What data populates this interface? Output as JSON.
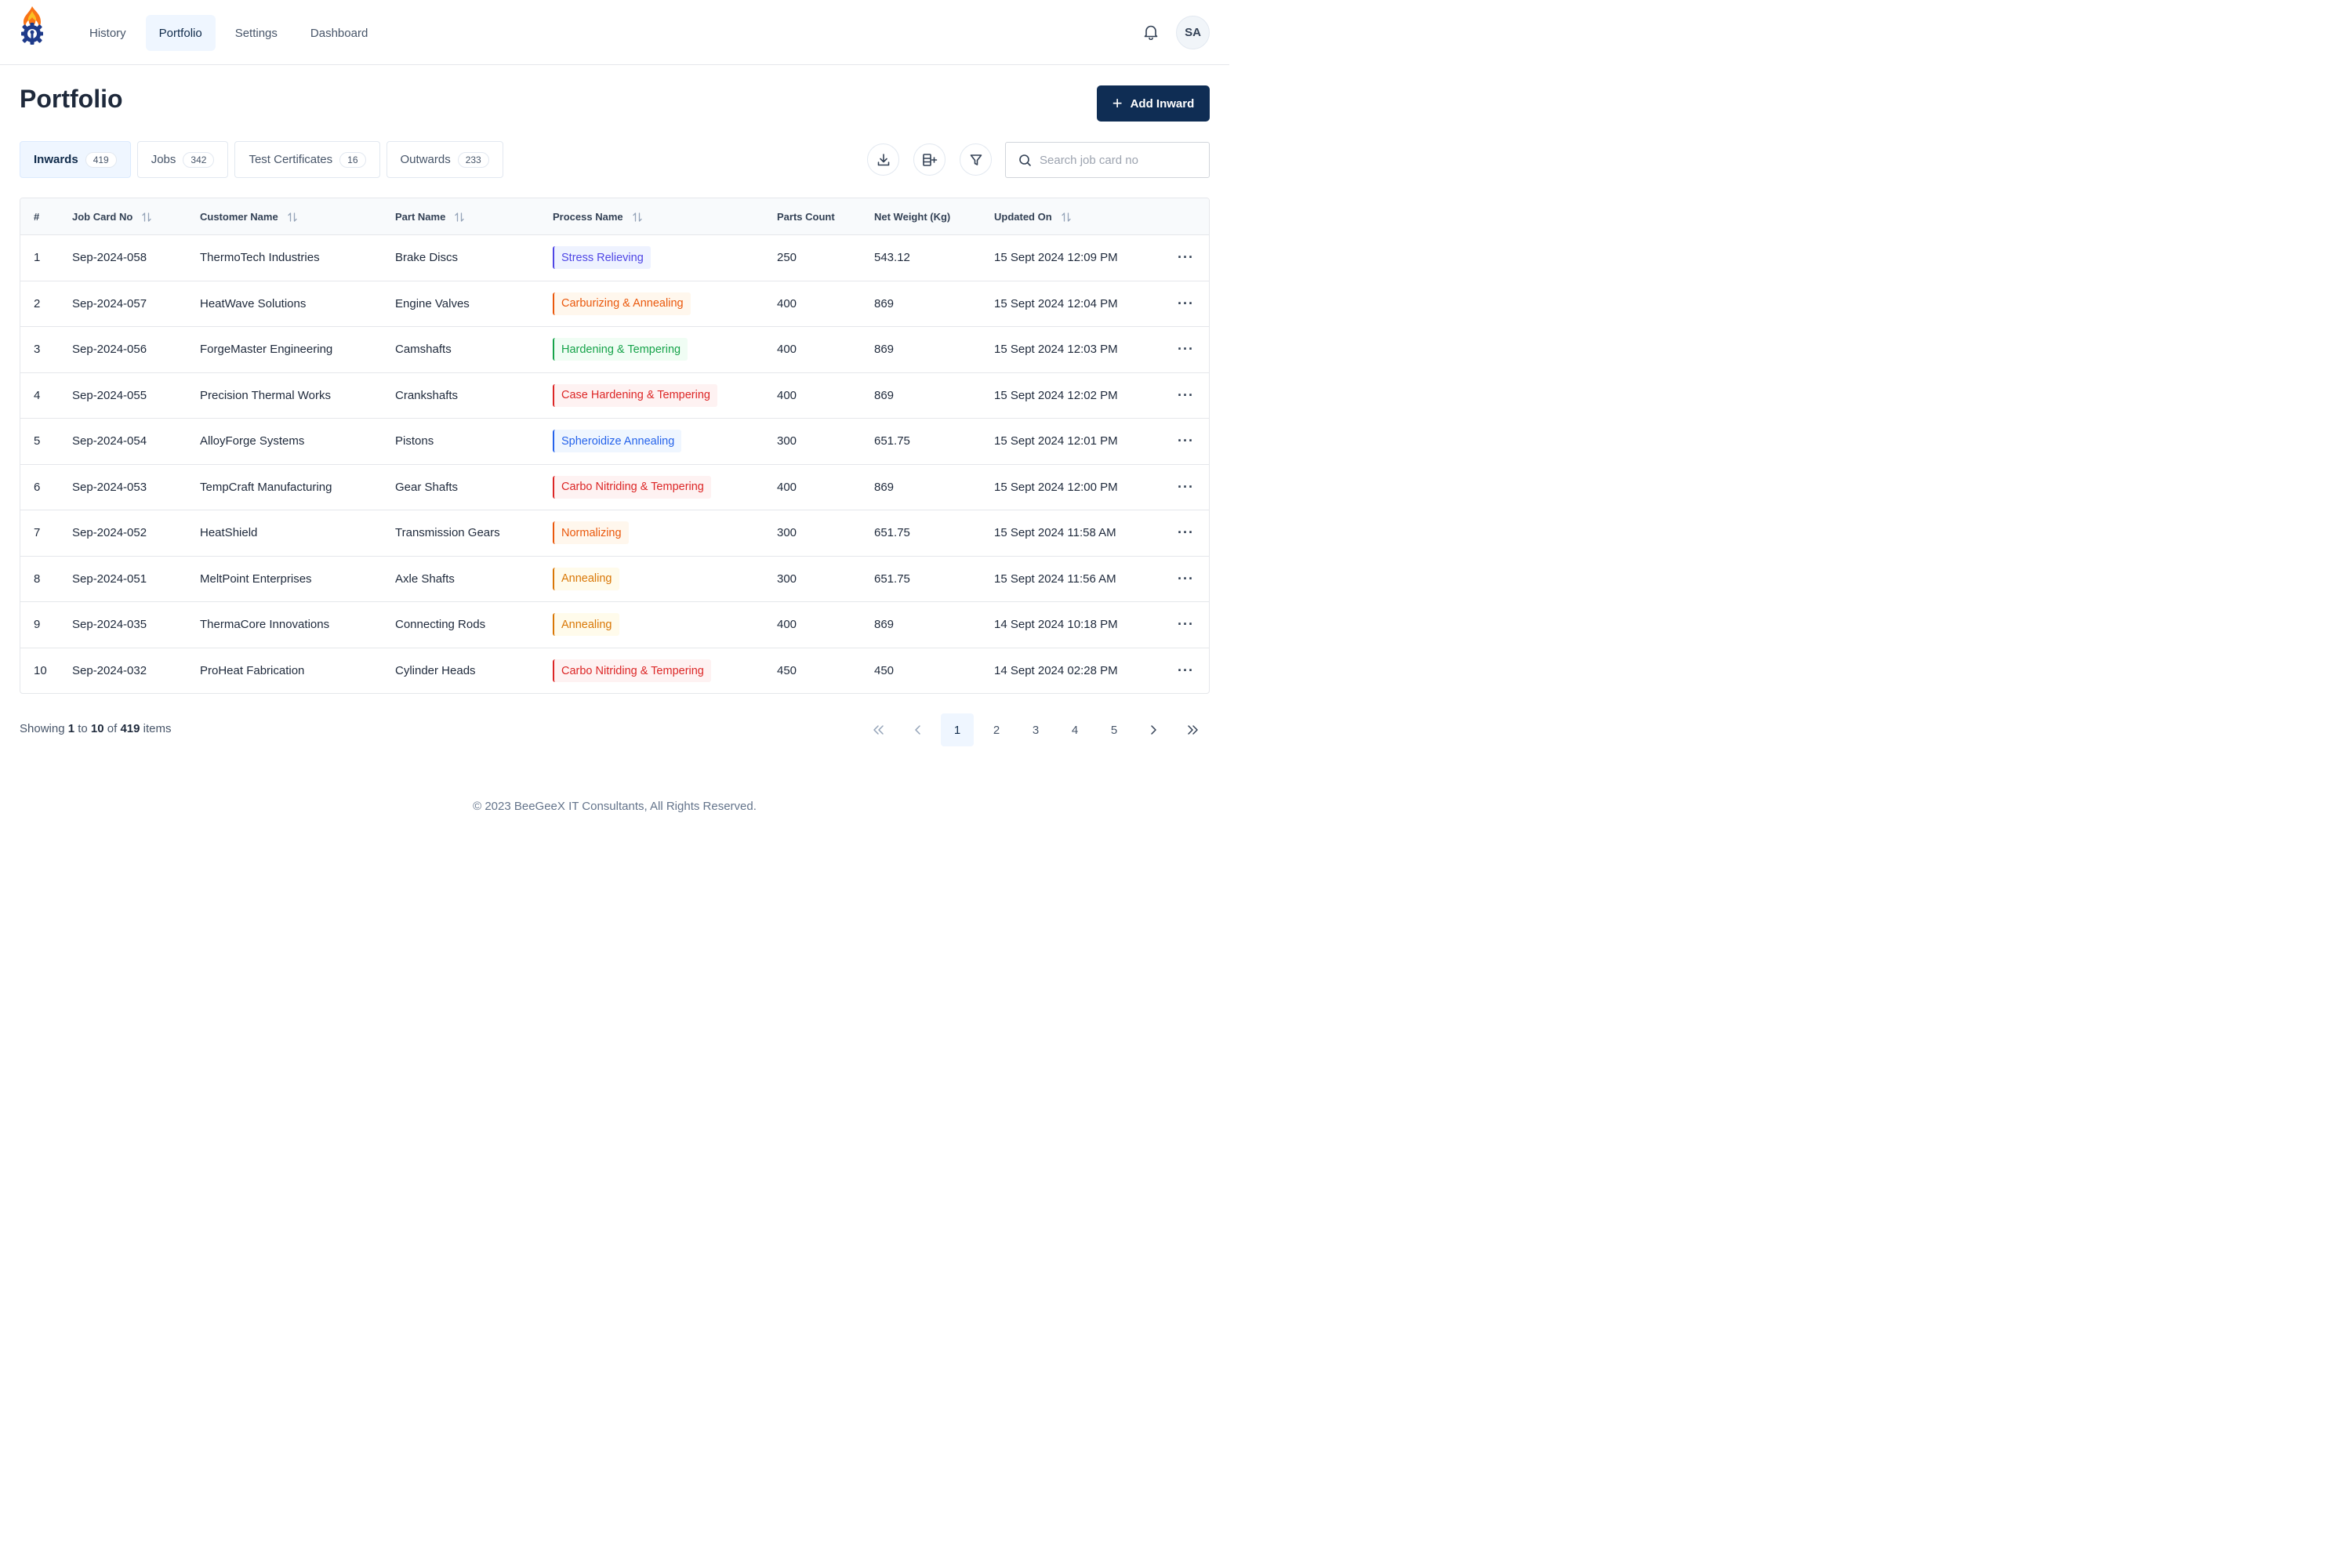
{
  "nav": {
    "items": [
      {
        "label": "History",
        "active": false
      },
      {
        "label": "Portfolio",
        "active": true
      },
      {
        "label": "Settings",
        "active": false
      },
      {
        "label": "Dashboard",
        "active": false
      }
    ]
  },
  "user": {
    "initials": "SA"
  },
  "page": {
    "title": "Portfolio",
    "add_button_label": "Add Inward"
  },
  "tabs": [
    {
      "label": "Inwards",
      "count": "419",
      "active": true
    },
    {
      "label": "Jobs",
      "count": "342",
      "active": false
    },
    {
      "label": "Test Certificates",
      "count": "16",
      "active": false
    },
    {
      "label": "Outwards",
      "count": "233",
      "active": false
    }
  ],
  "search": {
    "placeholder": "Search job card no",
    "value": ""
  },
  "table": {
    "columns": [
      "#",
      "Job Card No",
      "Customer Name",
      "Part Name",
      "Process Name",
      "Parts Count",
      "Net Weight (Kg)",
      "Updated On"
    ],
    "rows": [
      {
        "index": "1",
        "job_card": "Sep-2024-058",
        "customer": "ThermoTech Industries",
        "part": "Brake Discs",
        "process": "Stress Relieving",
        "process_color": "#4f46e5",
        "process_bg": "#eef2ff",
        "parts_count": "250",
        "net_weight": "543.12",
        "updated": "15 Sept 2024 12:09 PM"
      },
      {
        "index": "2",
        "job_card": "Sep-2024-057",
        "customer": "HeatWave Solutions",
        "part": "Engine Valves",
        "process": "Carburizing & Annealing",
        "process_color": "#ea580c",
        "process_bg": "#fff7ed",
        "parts_count": "400",
        "net_weight": "869",
        "updated": "15 Sept 2024 12:04 PM"
      },
      {
        "index": "3",
        "job_card": "Sep-2024-056",
        "customer": "ForgeMaster Engineering",
        "part": "Camshafts",
        "process": "Hardening & Tempering",
        "process_color": "#16a34a",
        "process_bg": "#f0fdf4",
        "parts_count": "400",
        "net_weight": "869",
        "updated": "15 Sept 2024 12:03 PM"
      },
      {
        "index": "4",
        "job_card": "Sep-2024-055",
        "customer": "Precision Thermal Works",
        "part": "Crankshafts",
        "process": "Case Hardening & Tempering",
        "process_color": "#dc2626",
        "process_bg": "#fef2f2",
        "parts_count": "400",
        "net_weight": "869",
        "updated": "15 Sept 2024 12:02 PM"
      },
      {
        "index": "5",
        "job_card": "Sep-2024-054",
        "customer": "AlloyForge Systems",
        "part": "Pistons",
        "process": "Spheroidize Annealing",
        "process_color": "#2563eb",
        "process_bg": "#eff6ff",
        "parts_count": "300",
        "net_weight": "651.75",
        "updated": "15 Sept 2024 12:01 PM"
      },
      {
        "index": "6",
        "job_card": "Sep-2024-053",
        "customer": "TempCraft Manufacturing",
        "part": "Gear Shafts",
        "process": "Carbo Nitriding & Tempering",
        "process_color": "#dc2626",
        "process_bg": "#fef2f2",
        "parts_count": "400",
        "net_weight": "869",
        "updated": "15 Sept 2024 12:00 PM"
      },
      {
        "index": "7",
        "job_card": "Sep-2024-052",
        "customer": "HeatShield",
        "part": "Transmission Gears",
        "process": "Normalizing",
        "process_color": "#ea580c",
        "process_bg": "#fff7ed",
        "parts_count": "300",
        "net_weight": "651.75",
        "updated": "15 Sept 2024 11:58 AM"
      },
      {
        "index": "8",
        "job_card": "Sep-2024-051",
        "customer": "MeltPoint Enterprises",
        "part": "Axle Shafts",
        "process": "Annealing",
        "process_color": "#d97706",
        "process_bg": "#fffbeb",
        "parts_count": "300",
        "net_weight": "651.75",
        "updated": "15 Sept 2024 11:56 AM"
      },
      {
        "index": "9",
        "job_card": "Sep-2024-035",
        "customer": "ThermaCore Innovations",
        "part": "Connecting Rods",
        "process": "Annealing",
        "process_color": "#d97706",
        "process_bg": "#fffbeb",
        "parts_count": "400",
        "net_weight": "869",
        "updated": "14 Sept 2024 10:18 PM"
      },
      {
        "index": "10",
        "job_card": "Sep-2024-032",
        "customer": "ProHeat Fabrication",
        "part": "Cylinder Heads",
        "process": "Carbo Nitriding & Tempering",
        "process_color": "#dc2626",
        "process_bg": "#fef2f2",
        "parts_count": "450",
        "net_weight": "450",
        "updated": "14 Sept 2024 02:28 PM"
      }
    ]
  },
  "footer": {
    "showing_prefix": "Showing",
    "from": "1",
    "to_word": "to",
    "to": "10",
    "of_word": "of",
    "total": "419",
    "items_word": "items",
    "pages": [
      "1",
      "2",
      "3",
      "4",
      "5"
    ],
    "current_page": "1",
    "copyright": "© 2023 BeeGeeX IT Consultants, All Rights Reserved."
  },
  "colors": {
    "primary": "#0f2d54",
    "active_bg": "#eff6ff",
    "logo_flame": "#f97316",
    "logo_gear": "#1e3a8a"
  }
}
